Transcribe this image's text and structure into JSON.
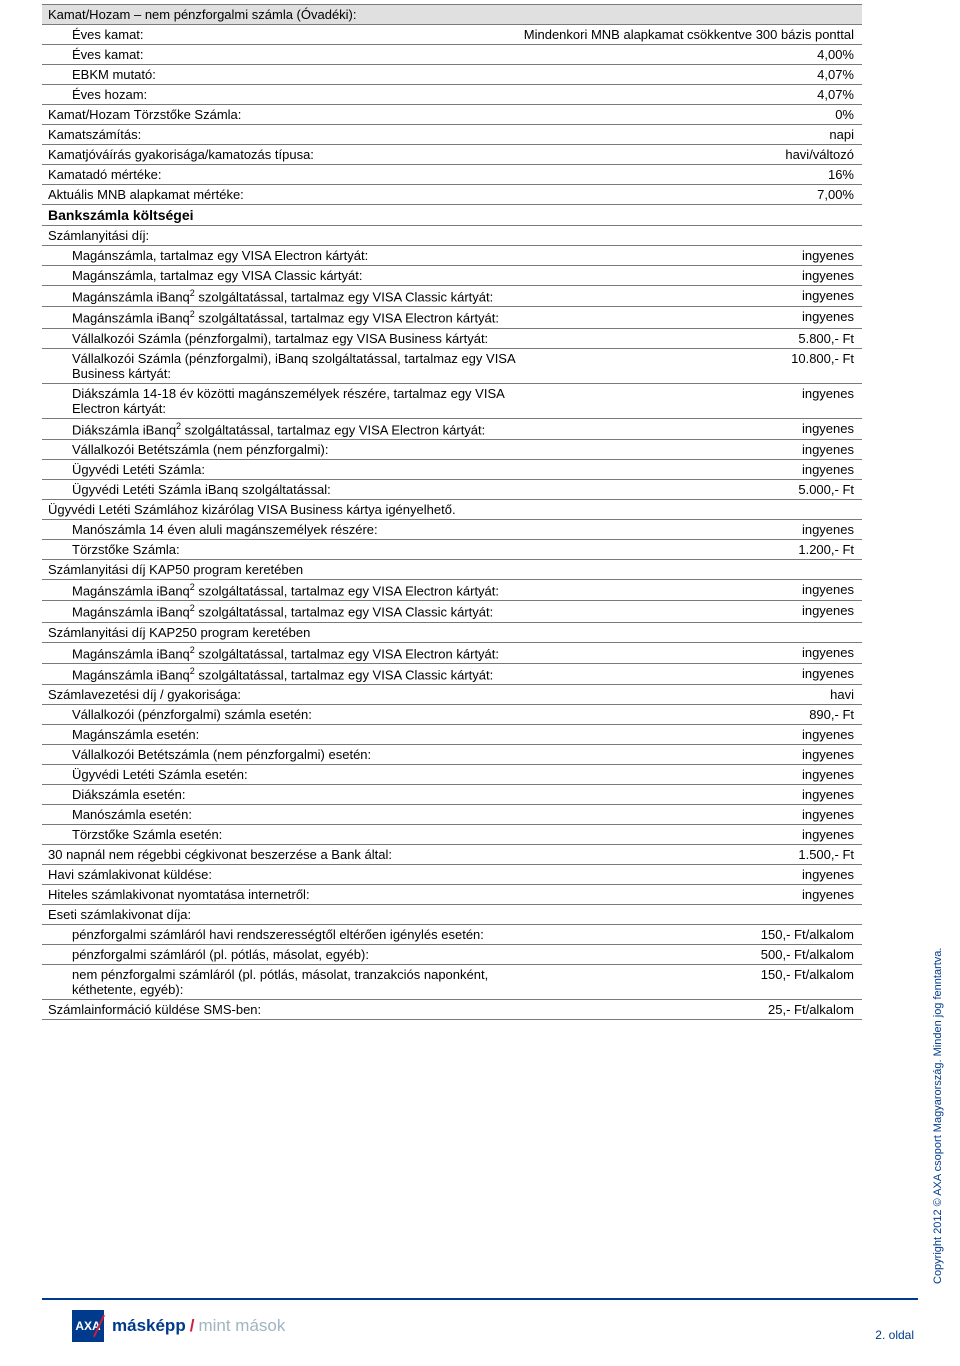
{
  "rows": [
    {
      "label": "Kamat/Hozam – nem pénzforgalmi számla (Óvadéki):",
      "value": "",
      "indent": false,
      "grey": true
    },
    {
      "label": "Éves kamat:",
      "value": "Mindenkori MNB alapkamat csökkentve 300 bázis ponttal",
      "indent": true
    },
    {
      "label": "Éves kamat:",
      "value": "4,00%",
      "indent": true
    },
    {
      "label": "EBKM mutató:",
      "value": "4,07%",
      "indent": true
    },
    {
      "label": "Éves hozam:",
      "value": "4,07%",
      "indent": true
    },
    {
      "label": "Kamat/Hozam Törzstőke Számla:",
      "value": "0%",
      "indent": false
    },
    {
      "label": "Kamatszámítás:",
      "value": "napi",
      "indent": false
    },
    {
      "label": "Kamatjóváírás gyakorisága/kamatozás típusa:",
      "value": "havi/változó",
      "indent": false
    },
    {
      "label": "Kamatadó mértéke:",
      "value": "16%",
      "indent": false
    },
    {
      "label": "Aktuális MNB alapkamat mértéke:",
      "value": "7,00%",
      "indent": false
    },
    {
      "label": "Bankszámla költségei",
      "value": "",
      "indent": false,
      "bold": true
    },
    {
      "label": "Számlanyitási díj:",
      "value": "",
      "indent": false
    },
    {
      "label": "Magánszámla, tartalmaz egy VISA Electron kártyát:",
      "value": "ingyenes",
      "indent": true
    },
    {
      "label": "Magánszámla, tartalmaz egy VISA Classic kártyát:",
      "value": "ingyenes",
      "indent": true
    },
    {
      "label": "Magánszámla iBanq<sup>2</sup> szolgáltatással, tartalmaz egy VISA Classic kártyát:",
      "value": "ingyenes",
      "indent": true,
      "html": true
    },
    {
      "label": "Magánszámla iBanq<sup>2</sup> szolgáltatással, tartalmaz egy VISA Electron kártyát:",
      "value": "ingyenes",
      "indent": true,
      "html": true
    },
    {
      "label": "Vállalkozói Számla (pénzforgalmi), tartalmaz egy VISA Business kártyát:",
      "value": "5.800,- Ft",
      "indent": true
    },
    {
      "label": "Vállalkozói Számla (pénzforgalmi), iBanq szolgáltatással, tartalmaz egy VISA Business kártyát:",
      "value": "10.800,- Ft",
      "indent": true
    },
    {
      "label": "Diákszámla 14-18 év közötti magánszemélyek részére, tartalmaz egy VISA Electron kártyát:",
      "value": "ingyenes",
      "indent": true
    },
    {
      "label": "Diákszámla iBanq<sup>2</sup> szolgáltatással, tartalmaz egy VISA Electron kártyát:",
      "value": "ingyenes",
      "indent": true,
      "html": true
    },
    {
      "label": "Vállalkozói Betétszámla (nem pénzforgalmi):",
      "value": "ingyenes",
      "indent": true
    },
    {
      "label": "Ügyvédi Letéti Számla:",
      "value": "ingyenes",
      "indent": true
    },
    {
      "label": "Ügyvédi Letéti Számla iBanq szolgáltatással:",
      "value": "5.000,- Ft",
      "indent": true
    },
    {
      "label": "Ügyvédi Letéti Számlához kizárólag VISA Business kártya igényelhető.",
      "value": "",
      "indent": false
    },
    {
      "label": "Manószámla 14 éven aluli magánszemélyek részére:",
      "value": "ingyenes",
      "indent": true
    },
    {
      "label": "Törzstőke Számla:",
      "value": "1.200,- Ft",
      "indent": true
    },
    {
      "label": "Számlanyitási díj KAP50 program keretében",
      "value": "",
      "indent": false
    },
    {
      "label": "Magánszámla iBanq<sup>2</sup> szolgáltatással, tartalmaz egy VISA Electron kártyát:",
      "value": "ingyenes",
      "indent": true,
      "html": true
    },
    {
      "label": "Magánszámla iBanq<sup>2</sup> szolgáltatással, tartalmaz egy VISA Classic kártyát:",
      "value": "ingyenes",
      "indent": true,
      "html": true
    },
    {
      "label": "Számlanyitási díj KAP250 program keretében",
      "value": "",
      "indent": false
    },
    {
      "label": "Magánszámla iBanq<sup>2</sup> szolgáltatással, tartalmaz egy VISA Electron kártyát:",
      "value": "ingyenes",
      "indent": true,
      "html": true
    },
    {
      "label": "Magánszámla iBanq<sup>2</sup> szolgáltatással, tartalmaz egy VISA Classic kártyát:",
      "value": "ingyenes",
      "indent": true,
      "html": true
    },
    {
      "label": "Számlavezetési díj / gyakorisága:",
      "value": "havi",
      "indent": false
    },
    {
      "label": "Vállalkozói (pénzforgalmi) számla esetén:",
      "value": "890,- Ft",
      "indent": true
    },
    {
      "label": "Magánszámla esetén:",
      "value": "ingyenes",
      "indent": true
    },
    {
      "label": "Vállalkozói Betétszámla (nem pénzforgalmi) esetén:",
      "value": "ingyenes",
      "indent": true
    },
    {
      "label": "Ügyvédi Letéti Számla esetén:",
      "value": "ingyenes",
      "indent": true
    },
    {
      "label": "Diákszámla esetén:",
      "value": "ingyenes",
      "indent": true
    },
    {
      "label": "Manószámla esetén:",
      "value": "ingyenes",
      "indent": true
    },
    {
      "label": "Törzstőke Számla esetén:",
      "value": "ingyenes",
      "indent": true
    },
    {
      "label": "30 napnál nem régebbi cégkivonat beszerzése a Bank által:",
      "value": "1.500,- Ft",
      "indent": false
    },
    {
      "label": "Havi számlakivonat küldése:",
      "value": "ingyenes",
      "indent": false
    },
    {
      "label": "Hiteles számlakivonat nyomtatása internetről:",
      "value": "ingyenes",
      "indent": false
    },
    {
      "label": "Eseti számlakivonat díja:",
      "value": "",
      "indent": false
    },
    {
      "label": "pénzforgalmi számláról havi rendszerességtől eltérően igénylés esetén:",
      "value": "150,- Ft/alkalom",
      "indent": true
    },
    {
      "label": "pénzforgalmi számláról (pl. pótlás, másolat, egyéb):",
      "value": "500,- Ft/alkalom",
      "indent": true
    },
    {
      "label": "nem pénzforgalmi számláról (pl. pótlás, másolat, tranzakciós naponként, kéthetente, egyéb):",
      "value": "150,- Ft/alkalom",
      "indent": true
    },
    {
      "label": "Számlainformáció küldése SMS-ben:",
      "value": "25,- Ft/alkalom",
      "indent": false
    }
  ],
  "footer": {
    "logo_text": "AXA",
    "brand_blue": "másképp",
    "brand_grey": "mint mások",
    "page_label": "2. oldal",
    "copyright": "Copyright 2012 © AXA csoport Magyarország. Minden jog fenntartva."
  },
  "colors": {
    "border": "#7a7a7a",
    "grey_bg": "#e0e0e0",
    "brand_blue": "#003a8c",
    "brand_red": "#d01e3a",
    "brand_grey": "#9fb5c0"
  }
}
